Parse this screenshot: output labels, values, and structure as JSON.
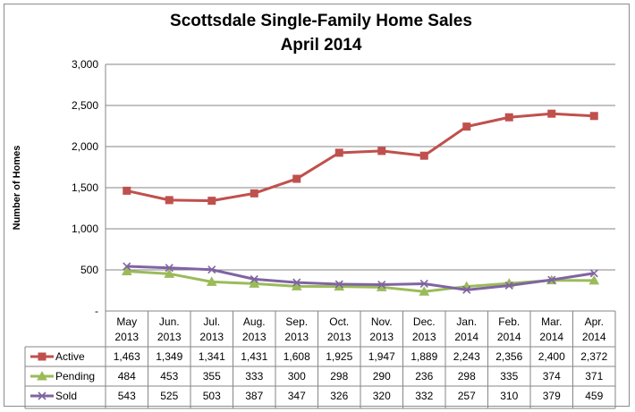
{
  "chart_data": {
    "type": "line",
    "title": "Scottsdale Single-Family Home Sales",
    "subtitle": "April 2014",
    "ylabel": "Number of Homes",
    "ylim": [
      0,
      3000
    ],
    "yticks": [
      "-",
      "500",
      "1,000",
      "1,500",
      "2,000",
      "2,500",
      "3,000"
    ],
    "grid": true,
    "legend": "data-table",
    "categories": [
      [
        "May",
        "2013"
      ],
      [
        "Jun.",
        "2013"
      ],
      [
        "Jul.",
        "2013"
      ],
      [
        "Aug.",
        "2013"
      ],
      [
        "Sep.",
        "2013"
      ],
      [
        "Oct.",
        "2013"
      ],
      [
        "Nov.",
        "2013"
      ],
      [
        "Dec.",
        "2013"
      ],
      [
        "Jan.",
        "2014"
      ],
      [
        "Feb.",
        "2014"
      ],
      [
        "Mar.",
        "2014"
      ],
      [
        "Apr.",
        "2014"
      ]
    ],
    "series": [
      {
        "name": "Active",
        "color": "#c0504d",
        "marker": "square",
        "values": [
          1463,
          1349,
          1341,
          1431,
          1608,
          1925,
          1947,
          1889,
          2243,
          2356,
          2400,
          2372
        ],
        "labels": [
          "1,463",
          "1,349",
          "1,341",
          "1,431",
          "1,608",
          "1,925",
          "1,947",
          "1,889",
          "2,243",
          "2,356",
          "2,400",
          "2,372"
        ]
      },
      {
        "name": "Pending",
        "color": "#9bbb59",
        "marker": "triangle",
        "values": [
          484,
          453,
          355,
          333,
          300,
          298,
          290,
          236,
          298,
          335,
          374,
          371
        ],
        "labels": [
          "484",
          "453",
          "355",
          "333",
          "300",
          "298",
          "290",
          "236",
          "298",
          "335",
          "374",
          "371"
        ]
      },
      {
        "name": "Sold",
        "color": "#8064a2",
        "marker": "x",
        "values": [
          543,
          525,
          503,
          387,
          347,
          326,
          320,
          332,
          257,
          310,
          379,
          459
        ],
        "labels": [
          "543",
          "525",
          "503",
          "387",
          "347",
          "326",
          "320",
          "332",
          "257",
          "310",
          "379",
          "459"
        ]
      }
    ]
  }
}
